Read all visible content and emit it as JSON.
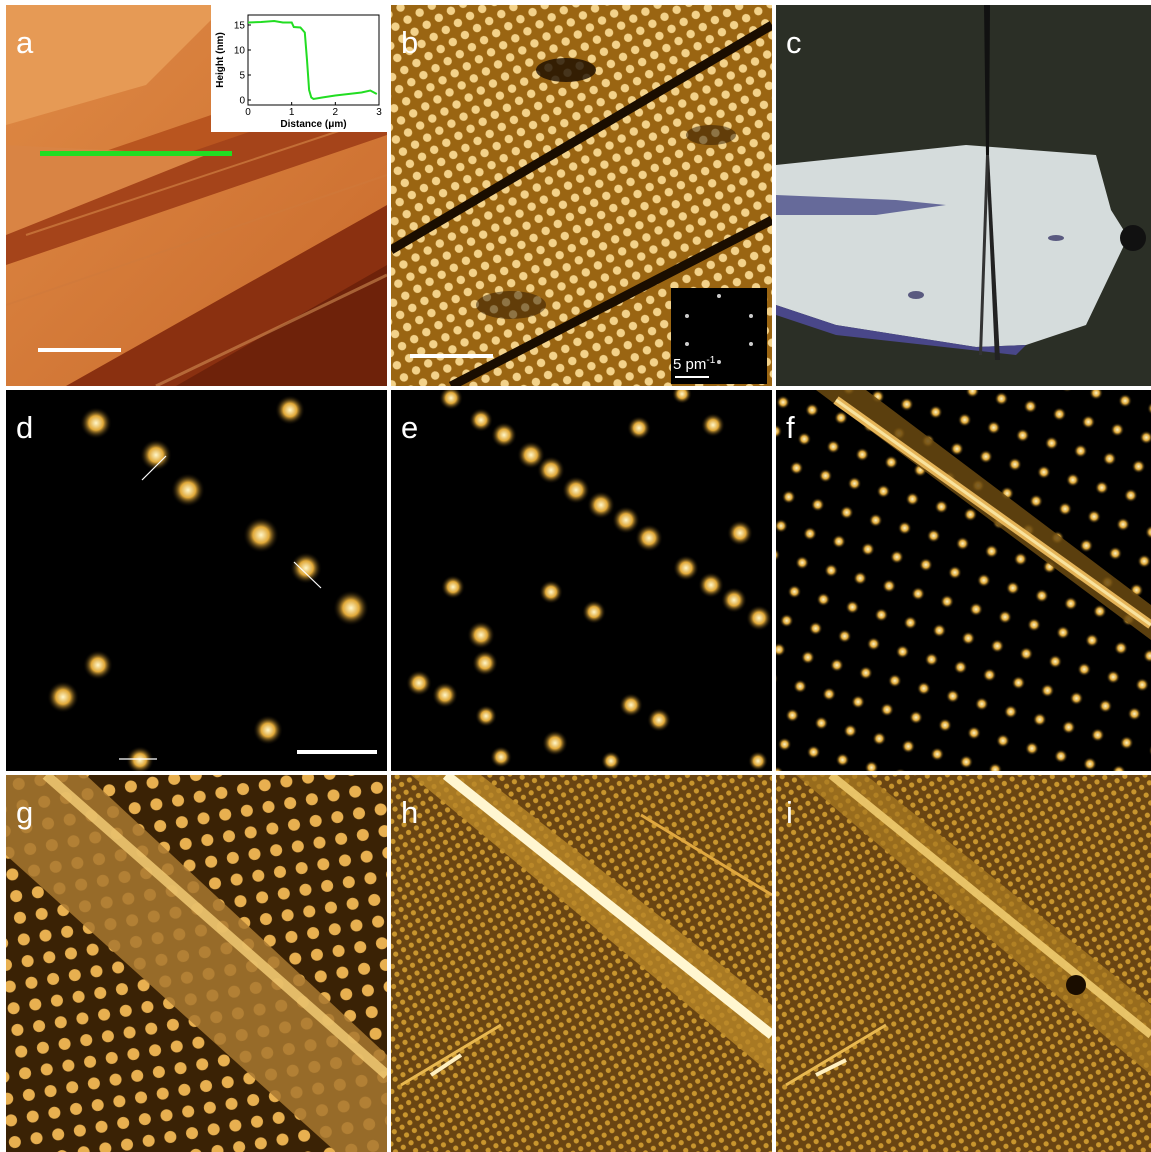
{
  "panels": {
    "a": {
      "label": "a"
    },
    "b": {
      "label": "b",
      "fft_label": "5 pm",
      "fft_label_exp": "-1"
    },
    "c": {
      "label": "c"
    },
    "d": {
      "label": "d"
    },
    "e": {
      "label": "e"
    },
    "f": {
      "label": "f"
    },
    "g": {
      "label": "g"
    },
    "h": {
      "label": "h"
    },
    "i": {
      "label": "i"
    }
  },
  "chart_data": {
    "type": "line",
    "xlabel": "Distance (μm)",
    "ylabel": "Height (nm)",
    "xlim": [
      0,
      3
    ],
    "ylim": [
      -1,
      17
    ],
    "xticks": [
      "0",
      "1",
      "2",
      "3"
    ],
    "yticks": [
      "0",
      "5",
      "10",
      "15"
    ],
    "line_color": "#22dd22",
    "series": [
      {
        "x": [
          0,
          0.3,
          0.6,
          0.8,
          1.0,
          1.05,
          1.2,
          1.3,
          1.35,
          1.4,
          1.45,
          1.5,
          1.7,
          2.0,
          2.3,
          2.6,
          2.8,
          2.95
        ],
        "y": [
          15.5,
          15.6,
          15.8,
          15.5,
          15.5,
          14.6,
          14.5,
          13.5,
          8.0,
          2.0,
          0.5,
          0.2,
          0.5,
          0.9,
          1.2,
          1.5,
          1.9,
          1.2
        ]
      }
    ]
  },
  "colors": {
    "afm_light": "#d9894a",
    "afm_dark": "#7a2a08",
    "stm_bright": "#fff0b0",
    "stm_mid": "#b07818",
    "green_line": "#22dd22"
  }
}
